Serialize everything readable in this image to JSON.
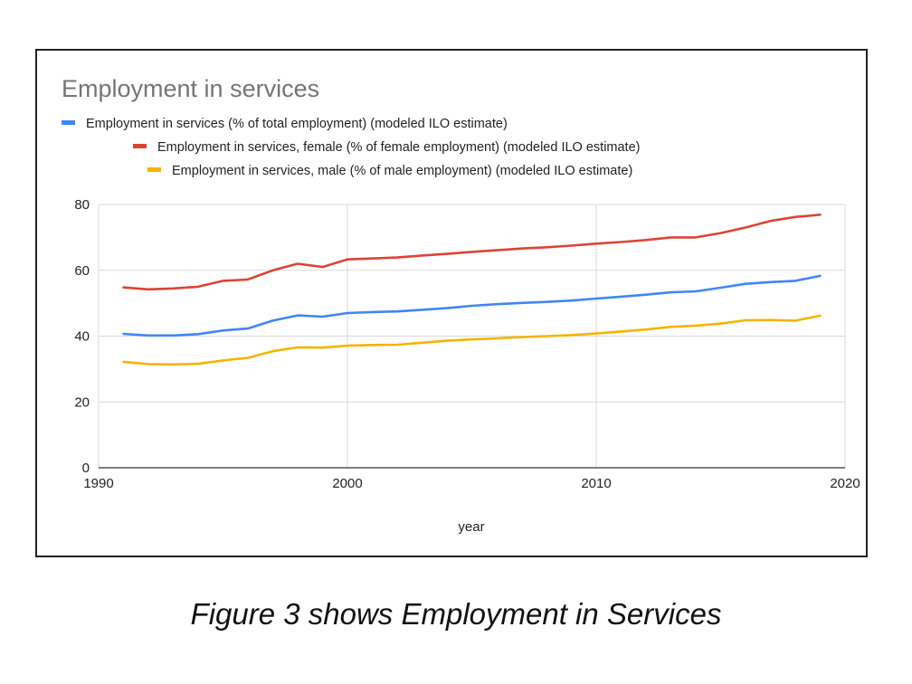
{
  "caption": "Figure 3 shows Employment in Services",
  "chart_data": {
    "type": "line",
    "title": "Employment in services",
    "xlabel": "year",
    "ylabel": "",
    "xlim": [
      1990,
      2020
    ],
    "ylim": [
      0,
      80
    ],
    "xticks": [
      1990,
      2000,
      2010,
      2020
    ],
    "yticks": [
      0,
      20,
      40,
      60,
      80
    ],
    "grid": true,
    "legend_position": "top",
    "x": [
      1991,
      1992,
      1993,
      1994,
      1995,
      1996,
      1997,
      1998,
      1999,
      2000,
      2001,
      2002,
      2003,
      2004,
      2005,
      2006,
      2007,
      2008,
      2009,
      2010,
      2011,
      2012,
      2013,
      2014,
      2015,
      2016,
      2017,
      2018,
      2019
    ],
    "series": [
      {
        "name": "Employment in services (% of total employment) (modeled ILO estimate)",
        "color": "#4285f4",
        "values": [
          40.7,
          40.2,
          40.2,
          40.6,
          41.7,
          42.3,
          44.7,
          46.3,
          45.9,
          47.0,
          47.3,
          47.5,
          48.0,
          48.5,
          49.2,
          49.7,
          50.1,
          50.4,
          50.8,
          51.4,
          52.0,
          52.6,
          53.3,
          53.6,
          54.7,
          55.9,
          56.4,
          56.8,
          58.3
        ]
      },
      {
        "name": "Employment in services, female (% of female employment) (modeled ILO estimate)",
        "color": "#db4437",
        "values": [
          54.8,
          54.2,
          54.5,
          55.0,
          56.8,
          57.2,
          60.0,
          62.0,
          61.0,
          63.3,
          63.6,
          63.9,
          64.5,
          65.0,
          65.6,
          66.1,
          66.6,
          67.0,
          67.5,
          68.1,
          68.6,
          69.2,
          70.0,
          70.0,
          71.3,
          73.0,
          75.0,
          76.2,
          76.9
        ]
      },
      {
        "name": "Employment in services, male (% of male employment) (modeled ILO estimate)",
        "color": "#f4b400",
        "values": [
          32.2,
          31.5,
          31.4,
          31.6,
          32.6,
          33.4,
          35.4,
          36.6,
          36.5,
          37.1,
          37.3,
          37.4,
          38.0,
          38.6,
          39.0,
          39.3,
          39.7,
          40.0,
          40.3,
          40.8,
          41.4,
          42.0,
          42.8,
          43.2,
          43.8,
          44.8,
          44.9,
          44.7,
          46.2
        ]
      }
    ]
  }
}
